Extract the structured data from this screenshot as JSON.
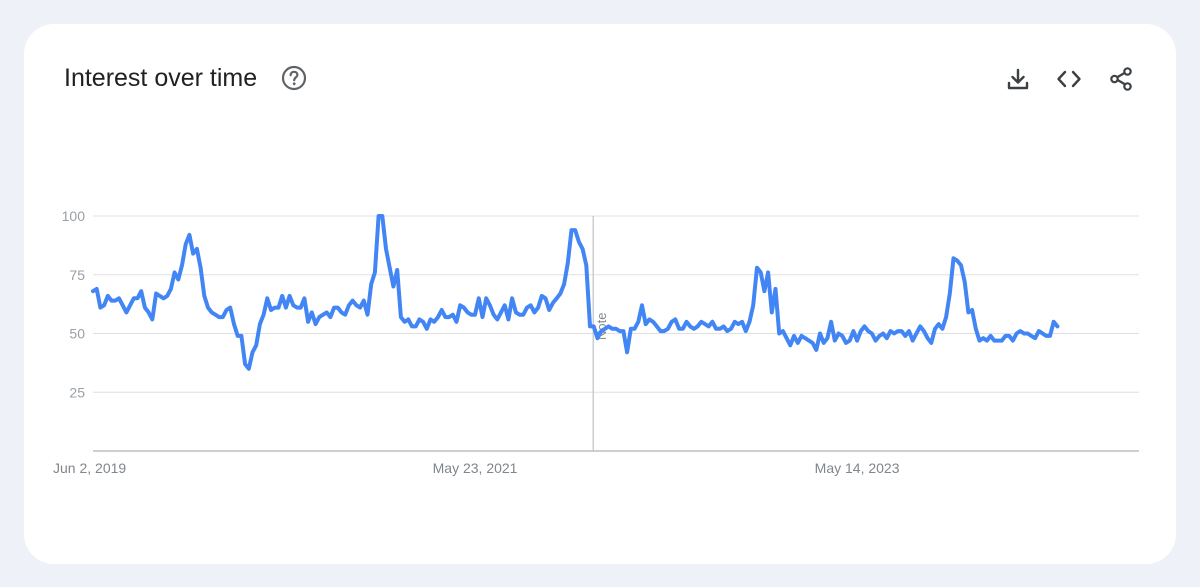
{
  "card": {
    "title": "Interest over time",
    "icons": {
      "help": "help-circle-icon",
      "download": "download-icon",
      "embed": "code-embed-icon",
      "share": "share-icon"
    }
  },
  "colors": {
    "line": "#4285f4",
    "grid": "#e0e0e0",
    "axis": "#9aa0a6",
    "text": "#202124",
    "icon": "#5f6368"
  },
  "chart_data": {
    "type": "line",
    "title": "",
    "xlabel": "",
    "ylabel": "",
    "ylim": [
      0,
      100
    ],
    "x_range": [
      "2019-06-02",
      "2024-10-27"
    ],
    "y_ticks": [
      "25",
      "50",
      "75",
      "100"
    ],
    "x_ticks": [
      {
        "date": "2019-06-02",
        "label": "Jun 2, 2019"
      },
      {
        "date": "2021-05-23",
        "label": "May 23, 2021"
      },
      {
        "date": "2023-05-14",
        "label": "May 14, 2023"
      }
    ],
    "grid": true,
    "annotations": [
      {
        "date": "2022-01-01",
        "label": "Note"
      }
    ],
    "series": [
      {
        "values": [
          [
            0,
            68
          ],
          [
            1,
            69
          ],
          [
            2,
            61
          ],
          [
            3,
            62
          ],
          [
            4,
            66
          ],
          [
            5,
            64
          ],
          [
            6,
            64
          ],
          [
            7,
            65
          ],
          [
            8,
            62
          ],
          [
            9,
            59
          ],
          [
            10,
            62
          ],
          [
            11,
            65
          ],
          [
            12,
            65
          ],
          [
            13,
            68
          ],
          [
            14,
            61
          ],
          [
            15,
            59
          ],
          [
            16,
            56
          ],
          [
            17,
            67
          ],
          [
            18,
            66
          ],
          [
            19,
            65
          ],
          [
            20,
            66
          ],
          [
            21,
            69
          ],
          [
            22,
            76
          ],
          [
            23,
            73
          ],
          [
            24,
            79
          ],
          [
            25,
            88
          ],
          [
            26,
            92
          ],
          [
            27,
            84
          ],
          [
            28,
            86
          ],
          [
            29,
            78
          ],
          [
            30,
            66
          ],
          [
            31,
            61
          ],
          [
            32,
            59
          ],
          [
            33,
            58
          ],
          [
            34,
            57
          ],
          [
            35,
            57
          ],
          [
            36,
            60
          ],
          [
            37,
            61
          ],
          [
            38,
            54
          ],
          [
            39,
            49
          ],
          [
            40,
            49
          ],
          [
            41,
            37
          ],
          [
            42,
            35
          ],
          [
            43,
            42
          ],
          [
            44,
            45
          ],
          [
            45,
            54
          ],
          [
            46,
            58
          ],
          [
            47,
            65
          ],
          [
            48,
            60
          ],
          [
            49,
            61
          ],
          [
            50,
            61
          ],
          [
            51,
            66
          ],
          [
            52,
            61
          ],
          [
            53,
            66
          ],
          [
            54,
            62
          ],
          [
            55,
            61
          ],
          [
            56,
            61
          ],
          [
            57,
            65
          ],
          [
            58,
            55
          ],
          [
            59,
            59
          ],
          [
            60,
            54
          ],
          [
            61,
            57
          ],
          [
            62,
            58
          ],
          [
            63,
            59
          ],
          [
            64,
            57
          ],
          [
            65,
            61
          ],
          [
            66,
            61
          ],
          [
            67,
            59
          ],
          [
            68,
            58
          ],
          [
            69,
            62
          ],
          [
            70,
            64
          ],
          [
            71,
            62
          ],
          [
            72,
            61
          ],
          [
            73,
            64
          ],
          [
            74,
            58
          ],
          [
            75,
            71
          ],
          [
            76,
            76
          ],
          [
            77,
            100
          ],
          [
            78,
            100
          ],
          [
            79,
            86
          ],
          [
            80,
            78
          ],
          [
            81,
            70
          ],
          [
            82,
            77
          ],
          [
            83,
            57
          ],
          [
            84,
            55
          ],
          [
            85,
            56
          ],
          [
            86,
            53
          ],
          [
            87,
            53
          ],
          [
            88,
            56
          ],
          [
            89,
            55
          ],
          [
            90,
            52
          ],
          [
            91,
            56
          ],
          [
            92,
            55
          ],
          [
            93,
            57
          ],
          [
            94,
            60
          ],
          [
            95,
            57
          ],
          [
            96,
            57
          ],
          [
            97,
            58
          ],
          [
            98,
            55
          ],
          [
            99,
            62
          ],
          [
            100,
            61
          ],
          [
            101,
            59
          ],
          [
            102,
            58
          ],
          [
            103,
            58
          ],
          [
            104,
            65
          ],
          [
            105,
            57
          ],
          [
            106,
            65
          ],
          [
            107,
            62
          ],
          [
            108,
            58
          ],
          [
            109,
            56
          ],
          [
            110,
            59
          ],
          [
            111,
            62
          ],
          [
            112,
            56
          ],
          [
            113,
            65
          ],
          [
            114,
            59
          ],
          [
            115,
            58
          ],
          [
            116,
            58
          ],
          [
            117,
            61
          ],
          [
            118,
            62
          ],
          [
            119,
            59
          ],
          [
            120,
            61
          ],
          [
            121,
            66
          ],
          [
            122,
            65
          ],
          [
            123,
            60
          ],
          [
            124,
            63
          ],
          [
            125,
            65
          ],
          [
            126,
            67
          ],
          [
            127,
            71
          ],
          [
            128,
            80
          ],
          [
            129,
            94
          ],
          [
            130,
            94
          ],
          [
            131,
            89
          ],
          [
            132,
            86
          ],
          [
            133,
            79
          ],
          [
            134,
            53
          ],
          [
            135,
            53
          ],
          [
            136,
            48
          ],
          [
            137,
            51
          ],
          [
            138,
            52
          ],
          [
            139,
            53
          ],
          [
            140,
            52
          ],
          [
            141,
            52
          ],
          [
            142,
            51
          ],
          [
            143,
            51
          ],
          [
            144,
            42
          ],
          [
            145,
            52
          ],
          [
            146,
            52
          ],
          [
            147,
            55
          ],
          [
            148,
            62
          ],
          [
            149,
            54
          ],
          [
            150,
            56
          ],
          [
            151,
            55
          ],
          [
            152,
            53
          ],
          [
            153,
            51
          ],
          [
            154,
            51
          ],
          [
            155,
            52
          ],
          [
            156,
            55
          ],
          [
            157,
            56
          ],
          [
            158,
            52
          ],
          [
            159,
            52
          ],
          [
            160,
            55
          ],
          [
            161,
            53
          ],
          [
            162,
            52
          ],
          [
            163,
            53
          ],
          [
            164,
            55
          ],
          [
            165,
            54
          ],
          [
            166,
            53
          ],
          [
            167,
            55
          ],
          [
            168,
            52
          ],
          [
            169,
            52
          ],
          [
            170,
            53
          ],
          [
            171,
            51
          ],
          [
            172,
            52
          ],
          [
            173,
            55
          ],
          [
            174,
            54
          ],
          [
            175,
            55
          ],
          [
            176,
            51
          ],
          [
            177,
            55
          ],
          [
            178,
            62
          ],
          [
            179,
            78
          ],
          [
            180,
            76
          ],
          [
            181,
            68
          ],
          [
            182,
            76
          ],
          [
            183,
            59
          ],
          [
            184,
            69
          ],
          [
            185,
            50
          ],
          [
            186,
            51
          ],
          [
            187,
            48
          ],
          [
            188,
            45
          ],
          [
            189,
            49
          ],
          [
            190,
            46
          ],
          [
            191,
            49
          ],
          [
            192,
            48
          ],
          [
            193,
            47
          ],
          [
            194,
            46
          ],
          [
            195,
            43
          ],
          [
            196,
            50
          ],
          [
            197,
            46
          ],
          [
            198,
            48
          ],
          [
            199,
            55
          ],
          [
            200,
            47
          ],
          [
            201,
            50
          ],
          [
            202,
            49
          ],
          [
            203,
            46
          ],
          [
            204,
            47
          ],
          [
            205,
            51
          ],
          [
            206,
            47
          ],
          [
            207,
            51
          ],
          [
            208,
            53
          ],
          [
            209,
            51
          ],
          [
            210,
            50
          ],
          [
            211,
            47
          ],
          [
            212,
            49
          ],
          [
            213,
            50
          ],
          [
            214,
            48
          ],
          [
            215,
            51
          ],
          [
            216,
            50
          ],
          [
            217,
            51
          ],
          [
            218,
            51
          ],
          [
            219,
            49
          ],
          [
            220,
            51
          ],
          [
            221,
            47
          ],
          [
            222,
            50
          ],
          [
            223,
            53
          ],
          [
            224,
            51
          ],
          [
            225,
            48
          ],
          [
            226,
            46
          ],
          [
            227,
            52
          ],
          [
            228,
            54
          ],
          [
            229,
            52
          ],
          [
            230,
            57
          ],
          [
            231,
            67
          ],
          [
            232,
            82
          ],
          [
            233,
            81
          ],
          [
            234,
            79
          ],
          [
            235,
            72
          ],
          [
            236,
            59
          ],
          [
            237,
            60
          ],
          [
            238,
            52
          ],
          [
            239,
            47
          ],
          [
            240,
            48
          ],
          [
            241,
            47
          ],
          [
            242,
            49
          ],
          [
            243,
            47
          ],
          [
            244,
            47
          ],
          [
            245,
            47
          ],
          [
            246,
            49
          ],
          [
            247,
            49
          ],
          [
            248,
            47
          ],
          [
            249,
            50
          ],
          [
            250,
            51
          ],
          [
            251,
            50
          ],
          [
            252,
            50
          ],
          [
            253,
            49
          ],
          [
            254,
            48
          ],
          [
            255,
            51
          ],
          [
            256,
            50
          ],
          [
            257,
            49
          ],
          [
            258,
            49
          ],
          [
            259,
            55
          ],
          [
            260,
            53
          ]
        ]
      }
    ]
  }
}
